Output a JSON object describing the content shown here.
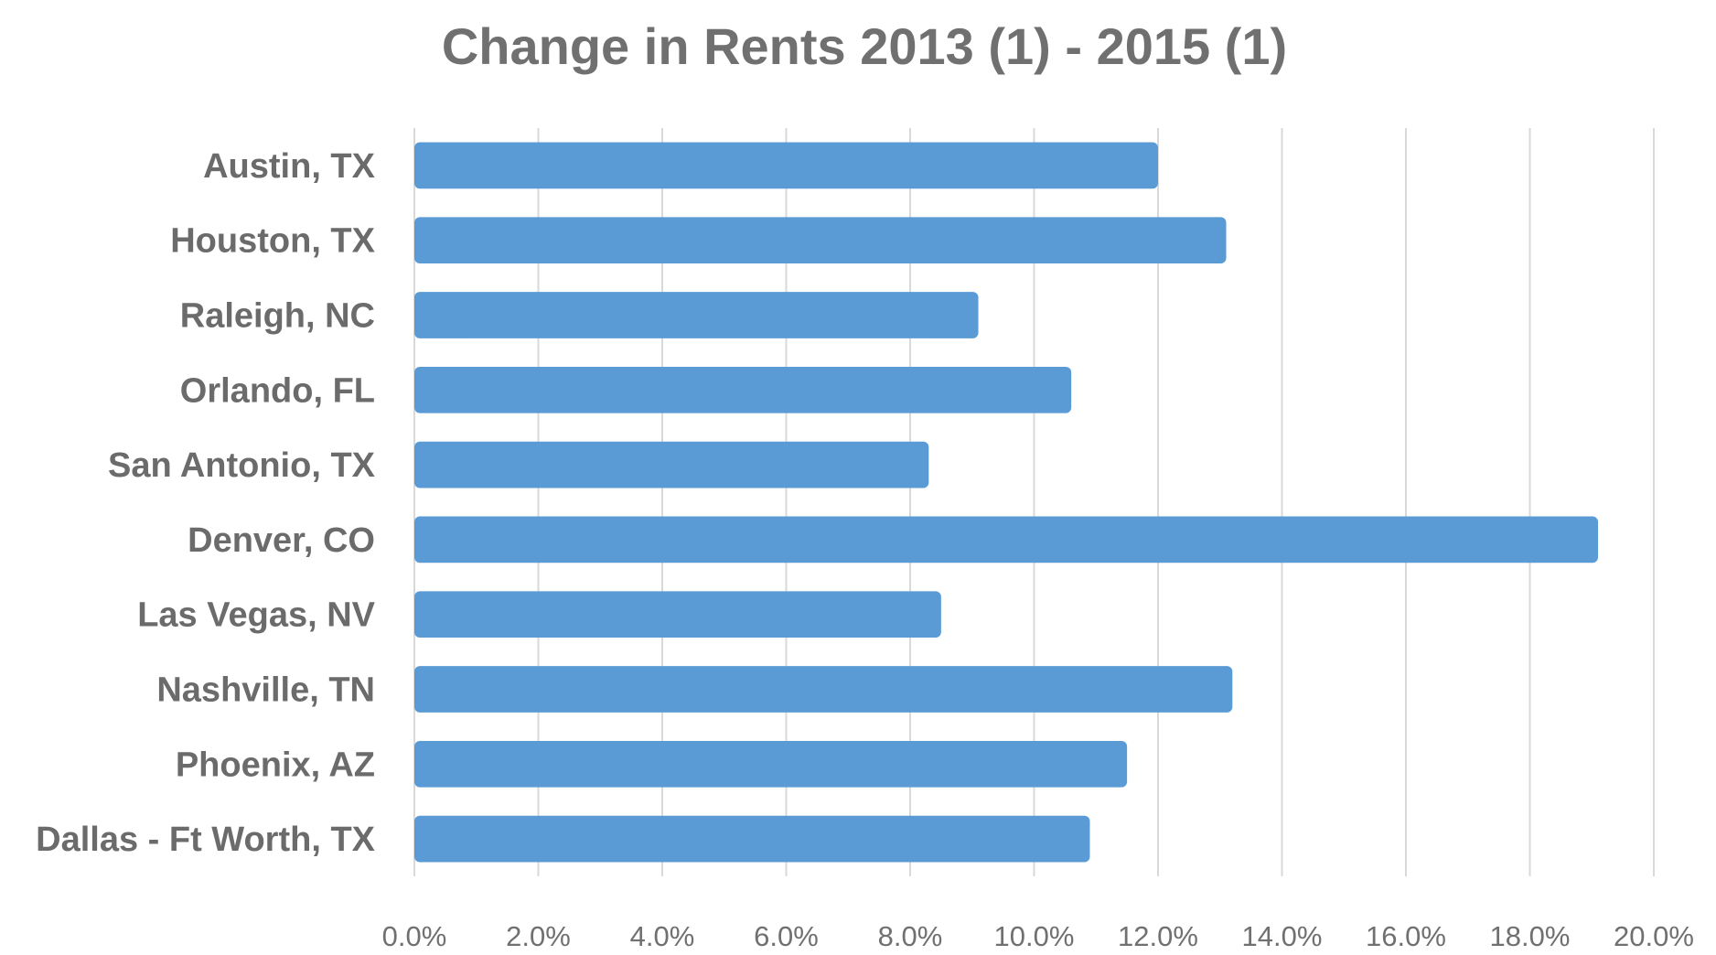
{
  "chart_data": {
    "type": "bar",
    "orientation": "horizontal",
    "title": "Change in Rents 2013 (1) - 2015 (1)",
    "xlabel": "",
    "ylabel": "",
    "categories": [
      "Austin, TX",
      "Houston, TX",
      "Raleigh, NC",
      "Orlando, FL",
      "San Antonio, TX",
      "Denver, CO",
      "Las Vegas, NV",
      "Nashville, TN",
      "Phoenix, AZ",
      "Dallas - Ft Worth, TX"
    ],
    "values": [
      12.0,
      13.1,
      9.1,
      10.6,
      8.3,
      19.1,
      8.5,
      13.2,
      11.5,
      10.9
    ],
    "xlim": [
      0,
      20
    ],
    "ticks": [
      "0.0%",
      "2.0%",
      "4.0%",
      "6.0%",
      "8.0%",
      "10.0%",
      "12.0%",
      "14.0%",
      "16.0%",
      "18.0%",
      "20.0%"
    ],
    "grid": "vertical",
    "legend": "none",
    "bar_color": "#5b9bd5"
  }
}
